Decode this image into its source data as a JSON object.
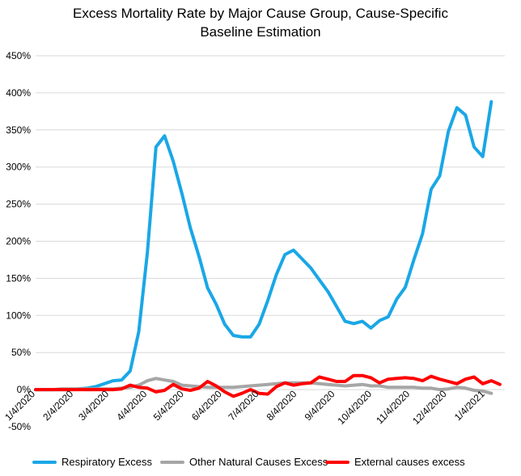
{
  "chart_data": {
    "type": "line",
    "title_lines": [
      "Excess Mortality Rate by Major Cause Group, Cause-Specific",
      "Baseline Estimation"
    ],
    "xlabel": "",
    "ylabel": "",
    "y_tick_labels": [
      "-50%",
      "0%",
      "50%",
      "100%",
      "150%",
      "200%",
      "250%",
      "300%",
      "350%",
      "400%",
      "450%"
    ],
    "y_ticks": [
      -50,
      0,
      50,
      100,
      150,
      200,
      250,
      300,
      350,
      400,
      450
    ],
    "ylim": [
      -50,
      450
    ],
    "x_tick_labels": [
      "1/4/2020",
      "2/4/2020",
      "3/4/2020",
      "4/4/2020",
      "5/4/2020",
      "6/4/2020",
      "7/4/2020",
      "8/4/2020",
      "9/4/2020",
      "10/4/2020",
      "11/4/2020",
      "12/4/2020",
      "1/4/2021"
    ],
    "x_tick_dates": [
      "2020-01-04",
      "2020-02-04",
      "2020-03-04",
      "2020-04-04",
      "2020-05-04",
      "2020-06-04",
      "2020-07-04",
      "2020-08-04",
      "2020-09-04",
      "2020-10-04",
      "2020-11-04",
      "2020-12-04",
      "2021-01-04"
    ],
    "x_range": [
      "2020-01-04",
      "2021-01-20"
    ],
    "grid": "horizontal",
    "legend_position": "bottom",
    "series": [
      {
        "name": "Respiratory Excess",
        "color": "#1aa7e6",
        "points": [
          [
            "2020-01-04",
            0
          ],
          [
            "2020-01-11",
            0
          ],
          [
            "2020-01-18",
            0
          ],
          [
            "2020-01-25",
            0
          ],
          [
            "2020-02-01",
            0
          ],
          [
            "2020-02-08",
            1
          ],
          [
            "2020-02-15",
            2
          ],
          [
            "2020-02-22",
            4
          ],
          [
            "2020-02-29",
            8
          ],
          [
            "2020-03-07",
            12
          ],
          [
            "2020-03-14",
            13
          ],
          [
            "2020-03-21",
            25
          ],
          [
            "2020-03-28",
            78
          ],
          [
            "2020-04-04",
            185
          ],
          [
            "2020-04-11",
            327
          ],
          [
            "2020-04-18",
            342
          ],
          [
            "2020-04-25",
            308
          ],
          [
            "2020-05-02",
            265
          ],
          [
            "2020-05-09",
            218
          ],
          [
            "2020-05-16",
            180
          ],
          [
            "2020-05-23",
            137
          ],
          [
            "2020-05-30",
            115
          ],
          [
            "2020-06-06",
            88
          ],
          [
            "2020-06-13",
            73
          ],
          [
            "2020-06-20",
            71
          ],
          [
            "2020-06-27",
            71
          ],
          [
            "2020-07-04",
            88
          ],
          [
            "2020-07-11",
            120
          ],
          [
            "2020-07-18",
            155
          ],
          [
            "2020-07-25",
            182
          ],
          [
            "2020-08-01",
            188
          ],
          [
            "2020-08-08",
            176
          ],
          [
            "2020-08-15",
            164
          ],
          [
            "2020-08-22",
            148
          ],
          [
            "2020-08-29",
            132
          ],
          [
            "2020-09-05",
            112
          ],
          [
            "2020-09-12",
            92
          ],
          [
            "2020-09-19",
            89
          ],
          [
            "2020-09-26",
            92
          ],
          [
            "2020-10-03",
            83
          ],
          [
            "2020-10-10",
            93
          ],
          [
            "2020-10-17",
            98
          ],
          [
            "2020-10-24",
            122
          ],
          [
            "2020-10-31",
            138
          ],
          [
            "2020-11-07",
            175
          ],
          [
            "2020-11-14",
            210
          ],
          [
            "2020-11-21",
            270
          ],
          [
            "2020-11-28",
            288
          ],
          [
            "2020-12-05",
            348
          ],
          [
            "2020-12-12",
            380
          ],
          [
            "2020-12-19",
            370
          ],
          [
            "2020-12-26",
            327
          ],
          [
            "2021-01-02",
            314
          ],
          [
            "2021-01-09",
            388
          ]
        ]
      },
      {
        "name": "Other Natural Causes Excess",
        "color": "#a6a6a6",
        "points": [
          [
            "2020-01-04",
            0
          ],
          [
            "2020-01-11",
            0
          ],
          [
            "2020-01-18",
            0
          ],
          [
            "2020-01-25",
            1
          ],
          [
            "2020-02-01",
            1
          ],
          [
            "2020-02-08",
            1
          ],
          [
            "2020-02-15",
            1
          ],
          [
            "2020-02-22",
            1
          ],
          [
            "2020-02-29",
            1
          ],
          [
            "2020-03-07",
            1
          ],
          [
            "2020-03-14",
            2
          ],
          [
            "2020-03-21",
            3
          ],
          [
            "2020-03-28",
            6
          ],
          [
            "2020-04-04",
            12
          ],
          [
            "2020-04-11",
            15
          ],
          [
            "2020-04-18",
            13
          ],
          [
            "2020-04-25",
            11
          ],
          [
            "2020-05-02",
            6
          ],
          [
            "2020-05-09",
            5
          ],
          [
            "2020-05-16",
            4
          ],
          [
            "2020-05-23",
            3
          ],
          [
            "2020-05-30",
            3
          ],
          [
            "2020-06-06",
            3
          ],
          [
            "2020-06-13",
            3
          ],
          [
            "2020-06-20",
            4
          ],
          [
            "2020-06-27",
            5
          ],
          [
            "2020-07-04",
            6
          ],
          [
            "2020-07-11",
            7
          ],
          [
            "2020-07-18",
            8
          ],
          [
            "2020-07-25",
            9
          ],
          [
            "2020-08-01",
            9
          ],
          [
            "2020-08-08",
            9
          ],
          [
            "2020-08-15",
            9
          ],
          [
            "2020-08-22",
            8
          ],
          [
            "2020-08-29",
            7
          ],
          [
            "2020-09-05",
            6
          ],
          [
            "2020-09-12",
            5
          ],
          [
            "2020-09-19",
            6
          ],
          [
            "2020-09-26",
            7
          ],
          [
            "2020-10-03",
            5
          ],
          [
            "2020-10-10",
            5
          ],
          [
            "2020-10-17",
            3
          ],
          [
            "2020-10-24",
            3
          ],
          [
            "2020-10-31",
            3
          ],
          [
            "2020-11-07",
            3
          ],
          [
            "2020-11-14",
            2
          ],
          [
            "2020-11-21",
            2
          ],
          [
            "2020-11-28",
            0
          ],
          [
            "2020-12-05",
            1
          ],
          [
            "2020-12-12",
            3
          ],
          [
            "2020-12-19",
            2
          ],
          [
            "2020-12-26",
            -1
          ],
          [
            "2021-01-02",
            -2
          ],
          [
            "2021-01-09",
            -5
          ]
        ]
      },
      {
        "name": "External causes excess",
        "color": "#ff0000",
        "points": [
          [
            "2020-01-04",
            0
          ],
          [
            "2020-01-11",
            0
          ],
          [
            "2020-01-18",
            0
          ],
          [
            "2020-01-25",
            0
          ],
          [
            "2020-02-01",
            0
          ],
          [
            "2020-02-08",
            0
          ],
          [
            "2020-02-15",
            0
          ],
          [
            "2020-02-22",
            0
          ],
          [
            "2020-02-29",
            0
          ],
          [
            "2020-03-07",
            0
          ],
          [
            "2020-03-14",
            1
          ],
          [
            "2020-03-21",
            6
          ],
          [
            "2020-03-28",
            3
          ],
          [
            "2020-04-04",
            2
          ],
          [
            "2020-04-11",
            -3
          ],
          [
            "2020-04-18",
            -1
          ],
          [
            "2020-04-25",
            7
          ],
          [
            "2020-05-02",
            1
          ],
          [
            "2020-05-09",
            -1
          ],
          [
            "2020-05-16",
            2
          ],
          [
            "2020-05-23",
            11
          ],
          [
            "2020-05-30",
            5
          ],
          [
            "2020-06-06",
            -3
          ],
          [
            "2020-06-13",
            -9
          ],
          [
            "2020-06-20",
            -5
          ],
          [
            "2020-06-27",
            0
          ],
          [
            "2020-07-04",
            -5
          ],
          [
            "2020-07-11",
            -6
          ],
          [
            "2020-07-18",
            4
          ],
          [
            "2020-07-25",
            9
          ],
          [
            "2020-08-01",
            6
          ],
          [
            "2020-08-08",
            8
          ],
          [
            "2020-08-15",
            9
          ],
          [
            "2020-08-22",
            17
          ],
          [
            "2020-08-29",
            14
          ],
          [
            "2020-09-05",
            11
          ],
          [
            "2020-09-12",
            11
          ],
          [
            "2020-09-19",
            19
          ],
          [
            "2020-09-26",
            19
          ],
          [
            "2020-10-03",
            16
          ],
          [
            "2020-10-10",
            9
          ],
          [
            "2020-10-17",
            14
          ],
          [
            "2020-10-24",
            15
          ],
          [
            "2020-10-31",
            16
          ],
          [
            "2020-11-07",
            15
          ],
          [
            "2020-11-14",
            12
          ],
          [
            "2020-11-21",
            18
          ],
          [
            "2020-11-28",
            14
          ],
          [
            "2020-12-05",
            11
          ],
          [
            "2020-12-12",
            8
          ],
          [
            "2020-12-19",
            14
          ],
          [
            "2020-12-26",
            17
          ],
          [
            "2021-01-02",
            8
          ],
          [
            "2021-01-09",
            12
          ],
          [
            "2021-01-16",
            7
          ]
        ]
      }
    ]
  }
}
